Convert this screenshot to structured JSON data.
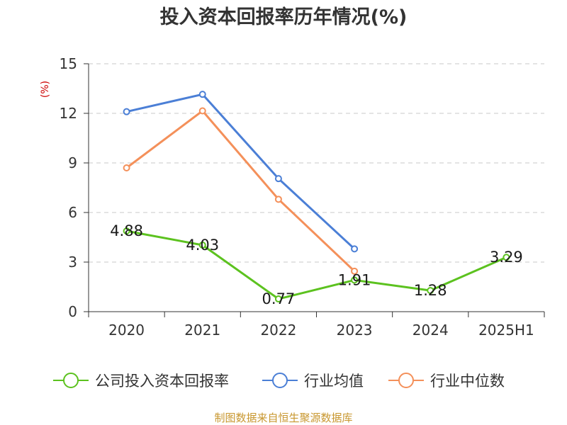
{
  "chart_data": {
    "type": "line",
    "title": "投入资本回报率历年情况(%)",
    "ylabel": "(%)",
    "categories": [
      "2020",
      "2021",
      "2022",
      "2023",
      "2024",
      "2025H1"
    ],
    "ylim": [
      0,
      15
    ],
    "yticks": [
      0,
      3,
      6,
      9,
      12,
      15
    ],
    "grid": true,
    "legend_position": "bottom",
    "series": [
      {
        "name": "公司投入资本回报率",
        "values": [
          4.88,
          4.03,
          0.77,
          1.91,
          1.28,
          3.29
        ],
        "color": "#5cc21f",
        "labels": [
          "4.88",
          "4.03",
          "0.77",
          "1.91",
          "1.28",
          "3.29"
        ]
      },
      {
        "name": "行业均值",
        "values": [
          12.1,
          13.15,
          8.05,
          3.8,
          null,
          null
        ],
        "color": "#4b7fd6"
      },
      {
        "name": "行业中位数",
        "values": [
          8.7,
          12.15,
          6.8,
          2.45,
          null,
          null
        ],
        "color": "#f4905a"
      }
    ],
    "source": "制图数据来自恒生聚源数据库"
  }
}
